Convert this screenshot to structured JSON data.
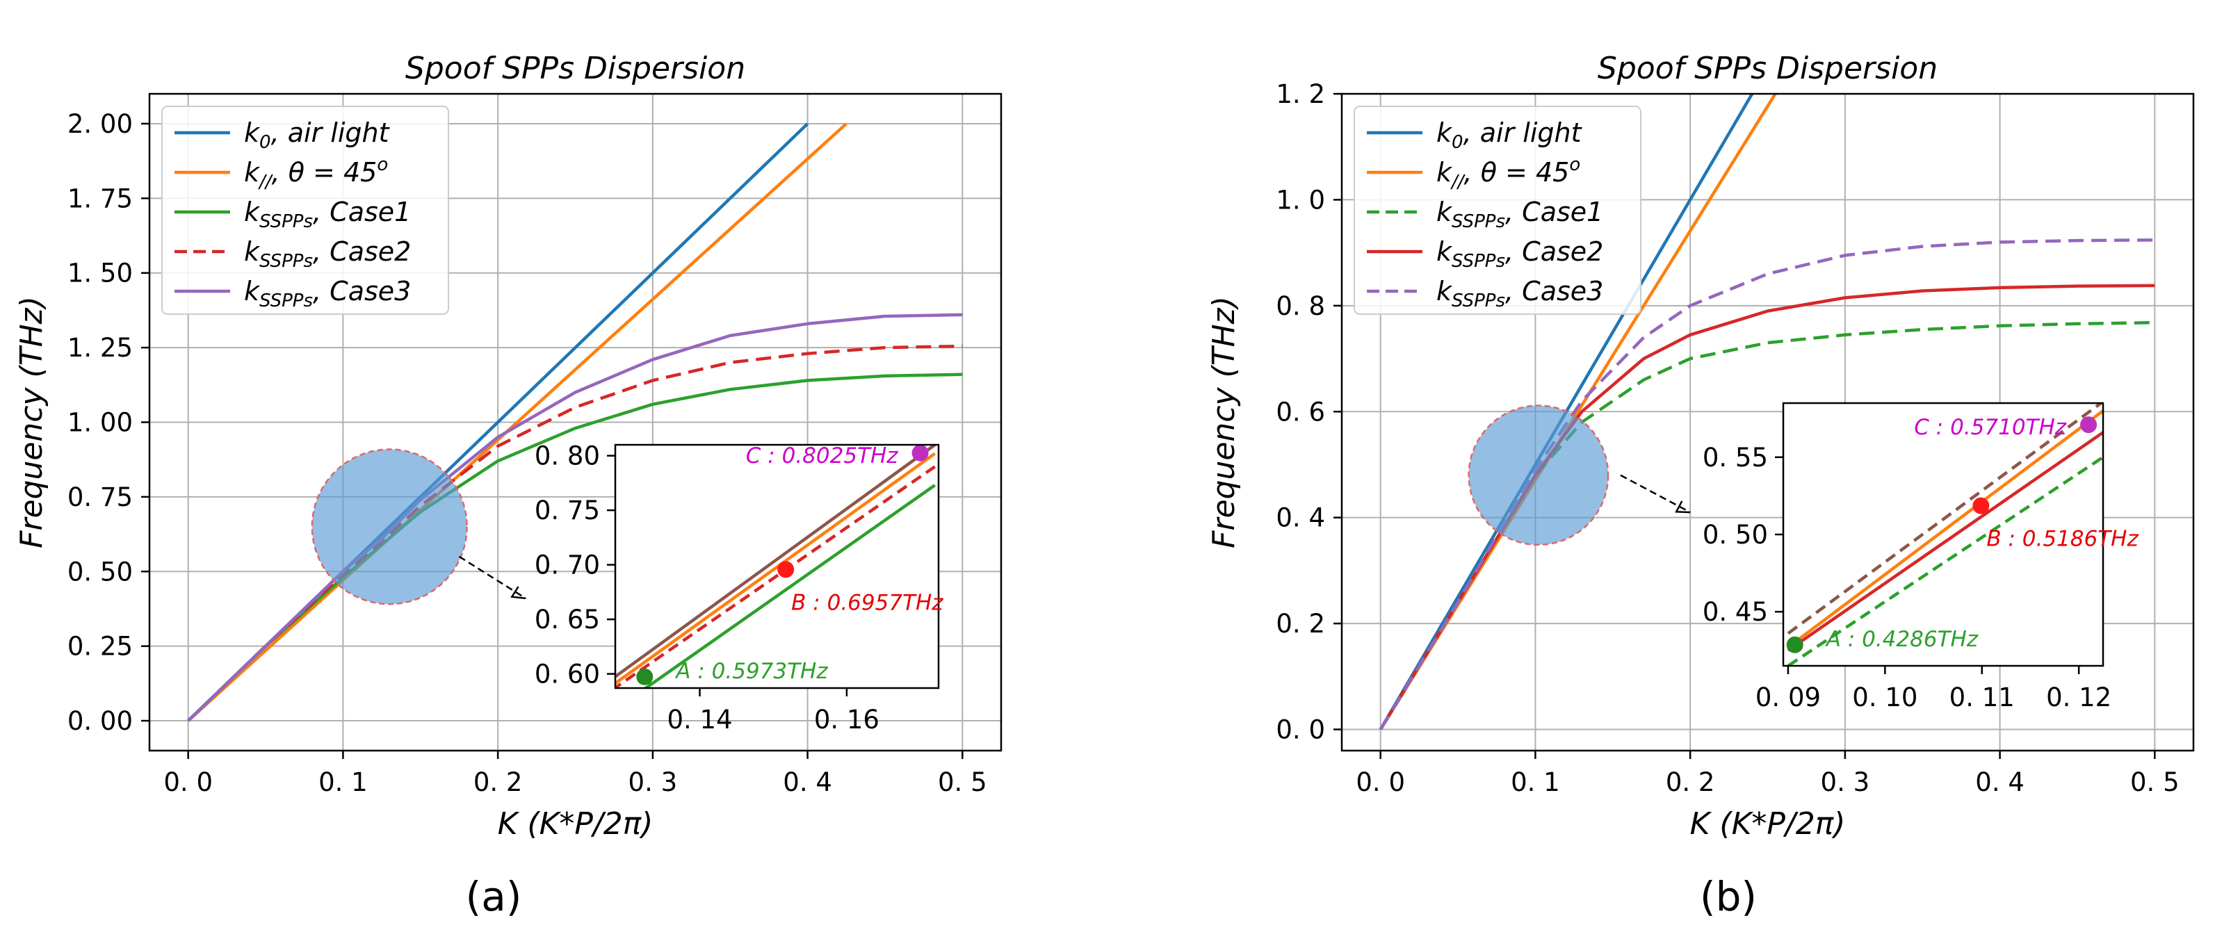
{
  "chart_data": [
    {
      "type": "line",
      "panel_label": "(a)",
      "title": "Spoof SPPs Dispersion",
      "xlabel": "K  (K*P/2π)",
      "ylabel": "Frequency  (THz)",
      "xlim": [
        -0.025,
        0.525
      ],
      "ylim": [
        -0.1,
        2.1
      ],
      "grid": true,
      "legend_position": "upper-left",
      "xticks": [
        0.0,
        0.1,
        0.2,
        0.3,
        0.4,
        0.5
      ],
      "xtick_labels": [
        "0. 0",
        "0. 1",
        "0. 2",
        "0. 3",
        "0. 4",
        "0. 5"
      ],
      "yticks": [
        0.0,
        0.25,
        0.5,
        0.75,
        1.0,
        1.25,
        1.5,
        1.75,
        2.0
      ],
      "ytick_labels": [
        "0. 00",
        "0. 25",
        "0. 50",
        "0. 75",
        "1. 00",
        "1. 25",
        "1. 50",
        "1. 75",
        "2. 00"
      ],
      "series": [
        {
          "name": "k0,  air light",
          "legend_main": "k",
          "legend_sub": "0",
          "legend_rest": ",  air light",
          "color": "#1f77b4",
          "dash": "solid",
          "x": [
            0,
            0.4
          ],
          "y": [
            0,
            2.0
          ]
        },
        {
          "name": "k//,  θ = 45o",
          "legend_main": "k",
          "legend_sub": "//",
          "legend_rest": ",  θ = 45",
          "legend_sup": "o",
          "color": "#ff7f0e",
          "dash": "solid",
          "x": [
            0,
            0.425
          ],
          "y": [
            0,
            2.0
          ]
        },
        {
          "name": "kSSPPs,  Case1",
          "legend_main": "k",
          "legend_sub": "SSPPs",
          "legend_rest": ",  Case1",
          "color": "#2ca02c",
          "dash": "solid",
          "x": [
            0,
            0.05,
            0.1,
            0.125,
            0.15,
            0.2,
            0.25,
            0.3,
            0.35,
            0.4,
            0.45,
            0.5
          ],
          "y": [
            0,
            0.25,
            0.48,
            0.59,
            0.7,
            0.87,
            0.98,
            1.06,
            1.11,
            1.14,
            1.155,
            1.16
          ]
        },
        {
          "name": "kSSPPs,  Case2",
          "legend_main": "k",
          "legend_sub": "SSPPs",
          "legend_rest": ",  Case2",
          "color": "#d62728",
          "dash": "dashed",
          "x": [
            0,
            0.05,
            0.1,
            0.125,
            0.15,
            0.2,
            0.25,
            0.3,
            0.35,
            0.4,
            0.45,
            0.5
          ],
          "y": [
            0,
            0.25,
            0.49,
            0.6,
            0.72,
            0.92,
            1.05,
            1.14,
            1.2,
            1.23,
            1.25,
            1.255
          ]
        },
        {
          "name": "kSSPPs,  Case3",
          "legend_main": "k",
          "legend_sub": "SSPPs",
          "legend_rest": ",  Case3",
          "color": "#9467bd",
          "dash": "solid",
          "x": [
            0,
            0.05,
            0.1,
            0.125,
            0.15,
            0.2,
            0.25,
            0.3,
            0.35,
            0.4,
            0.45,
            0.5
          ],
          "y": [
            0,
            0.25,
            0.5,
            0.61,
            0.74,
            0.95,
            1.1,
            1.21,
            1.29,
            1.33,
            1.355,
            1.36
          ]
        }
      ],
      "highlight_circle": {
        "cx": 0.13,
        "cy": 0.65,
        "r": 0.05,
        "color": "#5b9bd5",
        "edge": "#e06666"
      },
      "arrow": {
        "from": [
          0.175,
          0.55
        ],
        "to": [
          0.218,
          0.41
        ]
      },
      "inset": {
        "xlim": [
          0.1285,
          0.1725
        ],
        "ylim": [
          0.587,
          0.81
        ],
        "xticks": [
          0.14,
          0.16
        ],
        "xtick_labels": [
          "0. 14",
          "0. 16"
        ],
        "yticks": [
          0.6,
          0.65,
          0.7,
          0.75,
          0.8
        ],
        "ytick_labels": [
          "0. 60",
          "0. 65",
          "0. 70",
          "0. 75",
          "0. 80"
        ],
        "series": [
          {
            "name": "brown",
            "color": "#8c564b",
            "dash": "solid",
            "x": [
              0.128,
              0.172
            ],
            "y": [
              0.595,
              0.81
            ]
          },
          {
            "name": "orange",
            "color": "#ff7f0e",
            "dash": "solid",
            "x": [
              0.128,
              0.172
            ],
            "y": [
              0.589,
              0.802
            ]
          },
          {
            "name": "red dashed",
            "color": "#d62728",
            "dash": "dashed",
            "x": [
              0.128,
              0.172
            ],
            "y": [
              0.585,
              0.79
            ]
          },
          {
            "name": "green",
            "color": "#2ca02c",
            "dash": "solid",
            "x": [
              0.128,
              0.172
            ],
            "y": [
              0.565,
              0.773
            ]
          }
        ],
        "points": [
          {
            "label": "A : 0.5973THz",
            "x": 0.1325,
            "y": 0.5973,
            "color": "#228b22",
            "text_color": "#2ca02c",
            "label_pos": "right"
          },
          {
            "label": "B : 0.6957THz",
            "x": 0.1517,
            "y": 0.6957,
            "color": "#ff1a1a",
            "text_color": "#e60000",
            "label_pos": "below-right"
          },
          {
            "label": "C : 0.8025THz",
            "x": 0.17,
            "y": 0.8025,
            "color": "#bf2fbf",
            "text_color": "#cc00cc",
            "label_pos": "left"
          }
        ]
      }
    },
    {
      "type": "line",
      "panel_label": "(b)",
      "title": "Spoof SPPs Dispersion",
      "xlabel": "K  (K*P/2π)",
      "ylabel": "Frequency  (THz)",
      "xlim": [
        -0.025,
        0.525
      ],
      "ylim": [
        -0.04,
        1.2
      ],
      "grid": true,
      "legend_position": "upper-left",
      "xticks": [
        0.0,
        0.1,
        0.2,
        0.3,
        0.4,
        0.5
      ],
      "xtick_labels": [
        "0. 0",
        "0. 1",
        "0. 2",
        "0. 3",
        "0. 4",
        "0. 5"
      ],
      "yticks": [
        0.0,
        0.2,
        0.4,
        0.6,
        0.8,
        1.0,
        1.2
      ],
      "ytick_labels": [
        "0. 0",
        "0. 2",
        "0. 4",
        "0. 6",
        "0. 8",
        "1. 0",
        "1. 2"
      ],
      "series": [
        {
          "name": "k0,  air light",
          "legend_main": "k",
          "legend_sub": "0",
          "legend_rest": ",  air light",
          "color": "#1f77b4",
          "dash": "solid",
          "x": [
            0,
            0.24
          ],
          "y": [
            0,
            1.2
          ]
        },
        {
          "name": "k//,  θ = 45o",
          "legend_main": "k",
          "legend_sub": "//",
          "legend_rest": ",  θ = 45",
          "legend_sup": "o",
          "color": "#ff7f0e",
          "dash": "solid",
          "x": [
            0,
            0.255
          ],
          "y": [
            0,
            1.2
          ]
        },
        {
          "name": "kSSPPs,  Case1",
          "legend_main": "k",
          "legend_sub": "SSPPs",
          "legend_rest": ",  Case1",
          "color": "#2ca02c",
          "dash": "dashed",
          "x": [
            0,
            0.05,
            0.1,
            0.13,
            0.17,
            0.2,
            0.25,
            0.3,
            0.35,
            0.4,
            0.45,
            0.5
          ],
          "y": [
            0,
            0.24,
            0.48,
            0.58,
            0.66,
            0.7,
            0.73,
            0.745,
            0.755,
            0.762,
            0.766,
            0.768
          ]
        },
        {
          "name": "kSSPPs,  Case2",
          "legend_main": "k",
          "legend_sub": "SSPPs",
          "legend_rest": ",  Case2",
          "color": "#d62728",
          "dash": "solid",
          "x": [
            0,
            0.05,
            0.1,
            0.13,
            0.17,
            0.2,
            0.25,
            0.3,
            0.35,
            0.4,
            0.45,
            0.5
          ],
          "y": [
            0,
            0.24,
            0.48,
            0.6,
            0.7,
            0.745,
            0.79,
            0.815,
            0.828,
            0.834,
            0.837,
            0.838
          ]
        },
        {
          "name": "kSSPPs,  Case3",
          "legend_main": "k",
          "legend_sub": "SSPPs",
          "legend_rest": ",  Case3",
          "color": "#9467bd",
          "dash": "dashed",
          "x": [
            0,
            0.05,
            0.1,
            0.13,
            0.17,
            0.2,
            0.25,
            0.3,
            0.35,
            0.4,
            0.45,
            0.5
          ],
          "y": [
            0,
            0.24,
            0.49,
            0.62,
            0.74,
            0.8,
            0.86,
            0.895,
            0.912,
            0.92,
            0.923,
            0.924
          ]
        }
      ],
      "highlight_circle": {
        "cx": 0.102,
        "cy": 0.48,
        "r": 0.045,
        "color": "#5b9bd5",
        "edge": "#e06666"
      },
      "arrow": {
        "from": [
          0.155,
          0.48
        ],
        "to": [
          0.2,
          0.41
        ]
      },
      "inset": {
        "xlim": [
          0.0895,
          0.1225
        ],
        "ylim": [
          0.415,
          0.585
        ],
        "xticks": [
          0.09,
          0.1,
          0.11,
          0.12
        ],
        "xtick_labels": [
          "0. 09",
          "0. 10",
          "0. 11",
          "0. 12"
        ],
        "yticks": [
          0.45,
          0.5,
          0.55
        ],
        "ytick_labels": [
          "0. 45",
          "0. 50",
          "0. 55"
        ],
        "series": [
          {
            "name": "brown dashed",
            "color": "#8c564b",
            "dash": "dashed",
            "x": [
              0.09,
              0.1225
            ],
            "y": [
              0.436,
              0.586
            ]
          },
          {
            "name": "orange",
            "color": "#ff7f0e",
            "dash": "solid",
            "x": [
              0.09,
              0.1225
            ],
            "y": [
              0.427,
              0.58
            ]
          },
          {
            "name": "red",
            "color": "#d62728",
            "dash": "solid",
            "x": [
              0.09,
              0.1225
            ],
            "y": [
              0.425,
              0.566
            ]
          },
          {
            "name": "green dashed",
            "color": "#2ca02c",
            "dash": "dashed",
            "x": [
              0.09,
              0.1225
            ],
            "y": [
              0.415,
              0.55
            ]
          }
        ],
        "points": [
          {
            "label": "A : 0.4286THz",
            "x": 0.0907,
            "y": 0.4286,
            "color": "#228b22",
            "text_color": "#2ca02c",
            "label_pos": "right"
          },
          {
            "label": "B : 0.5186THz",
            "x": 0.1099,
            "y": 0.5186,
            "color": "#ff1a1a",
            "text_color": "#e60000",
            "label_pos": "below-right"
          },
          {
            "label": "C : 0.5710THz",
            "x": 0.121,
            "y": 0.571,
            "color": "#bf2fbf",
            "text_color": "#cc00cc",
            "label_pos": "left"
          }
        ]
      }
    }
  ]
}
